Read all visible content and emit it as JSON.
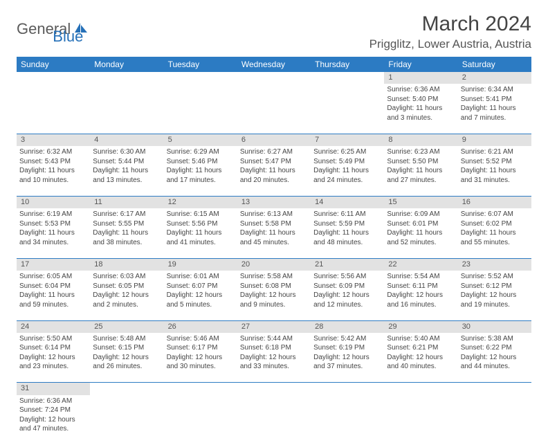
{
  "brand": {
    "text1": "General",
    "text2": "Blue",
    "icon_color": "#2570b8"
  },
  "title": "March 2024",
  "location": "Prigglitz, Lower Austria, Austria",
  "header_bg": "#2c7bc3",
  "header_fg": "#ffffff",
  "daynum_bg": "#e2e2e2",
  "border_color": "#2c7bc3",
  "text_color": "#444444",
  "day_names": [
    "Sunday",
    "Monday",
    "Tuesday",
    "Wednesday",
    "Thursday",
    "Friday",
    "Saturday"
  ],
  "weeks": [
    {
      "nums": [
        "",
        "",
        "",
        "",
        "",
        "1",
        "2"
      ],
      "cells": [
        [],
        [],
        [],
        [],
        [],
        [
          "Sunrise: 6:36 AM",
          "Sunset: 5:40 PM",
          "Daylight: 11 hours",
          "and 3 minutes."
        ],
        [
          "Sunrise: 6:34 AM",
          "Sunset: 5:41 PM",
          "Daylight: 11 hours",
          "and 7 minutes."
        ]
      ]
    },
    {
      "nums": [
        "3",
        "4",
        "5",
        "6",
        "7",
        "8",
        "9"
      ],
      "cells": [
        [
          "Sunrise: 6:32 AM",
          "Sunset: 5:43 PM",
          "Daylight: 11 hours",
          "and 10 minutes."
        ],
        [
          "Sunrise: 6:30 AM",
          "Sunset: 5:44 PM",
          "Daylight: 11 hours",
          "and 13 minutes."
        ],
        [
          "Sunrise: 6:29 AM",
          "Sunset: 5:46 PM",
          "Daylight: 11 hours",
          "and 17 minutes."
        ],
        [
          "Sunrise: 6:27 AM",
          "Sunset: 5:47 PM",
          "Daylight: 11 hours",
          "and 20 minutes."
        ],
        [
          "Sunrise: 6:25 AM",
          "Sunset: 5:49 PM",
          "Daylight: 11 hours",
          "and 24 minutes."
        ],
        [
          "Sunrise: 6:23 AM",
          "Sunset: 5:50 PM",
          "Daylight: 11 hours",
          "and 27 minutes."
        ],
        [
          "Sunrise: 6:21 AM",
          "Sunset: 5:52 PM",
          "Daylight: 11 hours",
          "and 31 minutes."
        ]
      ]
    },
    {
      "nums": [
        "10",
        "11",
        "12",
        "13",
        "14",
        "15",
        "16"
      ],
      "cells": [
        [
          "Sunrise: 6:19 AM",
          "Sunset: 5:53 PM",
          "Daylight: 11 hours",
          "and 34 minutes."
        ],
        [
          "Sunrise: 6:17 AM",
          "Sunset: 5:55 PM",
          "Daylight: 11 hours",
          "and 38 minutes."
        ],
        [
          "Sunrise: 6:15 AM",
          "Sunset: 5:56 PM",
          "Daylight: 11 hours",
          "and 41 minutes."
        ],
        [
          "Sunrise: 6:13 AM",
          "Sunset: 5:58 PM",
          "Daylight: 11 hours",
          "and 45 minutes."
        ],
        [
          "Sunrise: 6:11 AM",
          "Sunset: 5:59 PM",
          "Daylight: 11 hours",
          "and 48 minutes."
        ],
        [
          "Sunrise: 6:09 AM",
          "Sunset: 6:01 PM",
          "Daylight: 11 hours",
          "and 52 minutes."
        ],
        [
          "Sunrise: 6:07 AM",
          "Sunset: 6:02 PM",
          "Daylight: 11 hours",
          "and 55 minutes."
        ]
      ]
    },
    {
      "nums": [
        "17",
        "18",
        "19",
        "20",
        "21",
        "22",
        "23"
      ],
      "cells": [
        [
          "Sunrise: 6:05 AM",
          "Sunset: 6:04 PM",
          "Daylight: 11 hours",
          "and 59 minutes."
        ],
        [
          "Sunrise: 6:03 AM",
          "Sunset: 6:05 PM",
          "Daylight: 12 hours",
          "and 2 minutes."
        ],
        [
          "Sunrise: 6:01 AM",
          "Sunset: 6:07 PM",
          "Daylight: 12 hours",
          "and 5 minutes."
        ],
        [
          "Sunrise: 5:58 AM",
          "Sunset: 6:08 PM",
          "Daylight: 12 hours",
          "and 9 minutes."
        ],
        [
          "Sunrise: 5:56 AM",
          "Sunset: 6:09 PM",
          "Daylight: 12 hours",
          "and 12 minutes."
        ],
        [
          "Sunrise: 5:54 AM",
          "Sunset: 6:11 PM",
          "Daylight: 12 hours",
          "and 16 minutes."
        ],
        [
          "Sunrise: 5:52 AM",
          "Sunset: 6:12 PM",
          "Daylight: 12 hours",
          "and 19 minutes."
        ]
      ]
    },
    {
      "nums": [
        "24",
        "25",
        "26",
        "27",
        "28",
        "29",
        "30"
      ],
      "cells": [
        [
          "Sunrise: 5:50 AM",
          "Sunset: 6:14 PM",
          "Daylight: 12 hours",
          "and 23 minutes."
        ],
        [
          "Sunrise: 5:48 AM",
          "Sunset: 6:15 PM",
          "Daylight: 12 hours",
          "and 26 minutes."
        ],
        [
          "Sunrise: 5:46 AM",
          "Sunset: 6:17 PM",
          "Daylight: 12 hours",
          "and 30 minutes."
        ],
        [
          "Sunrise: 5:44 AM",
          "Sunset: 6:18 PM",
          "Daylight: 12 hours",
          "and 33 minutes."
        ],
        [
          "Sunrise: 5:42 AM",
          "Sunset: 6:19 PM",
          "Daylight: 12 hours",
          "and 37 minutes."
        ],
        [
          "Sunrise: 5:40 AM",
          "Sunset: 6:21 PM",
          "Daylight: 12 hours",
          "and 40 minutes."
        ],
        [
          "Sunrise: 5:38 AM",
          "Sunset: 6:22 PM",
          "Daylight: 12 hours",
          "and 44 minutes."
        ]
      ]
    },
    {
      "nums": [
        "31",
        "",
        "",
        "",
        "",
        "",
        ""
      ],
      "cells": [
        [
          "Sunrise: 6:36 AM",
          "Sunset: 7:24 PM",
          "Daylight: 12 hours",
          "and 47 minutes."
        ],
        [],
        [],
        [],
        [],
        [],
        []
      ]
    }
  ]
}
